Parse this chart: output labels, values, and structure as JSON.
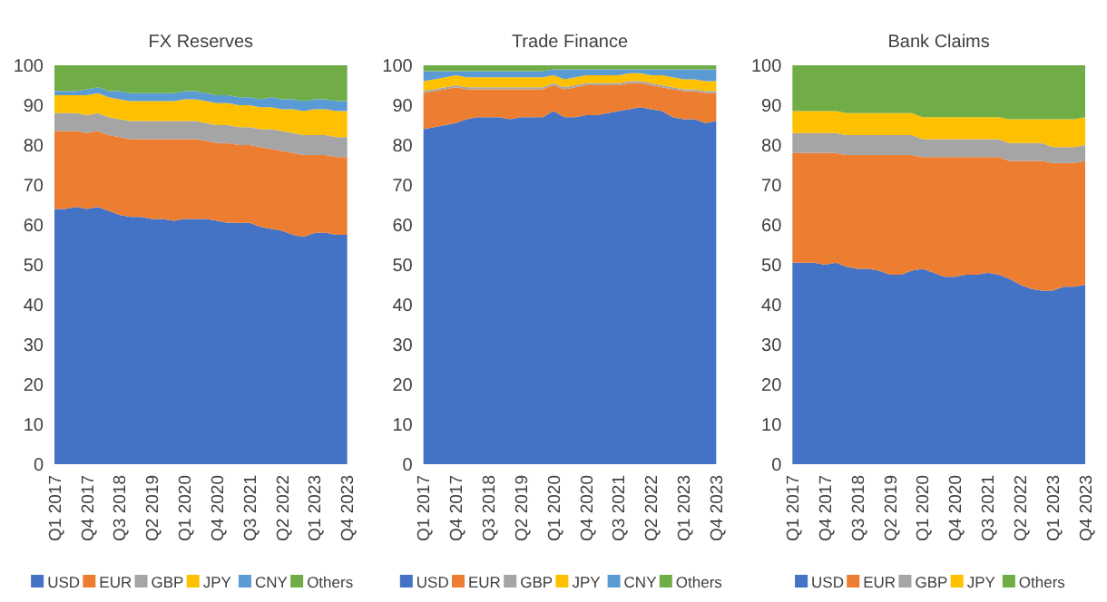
{
  "chart_data": [
    {
      "type": "area",
      "stacked": true,
      "title": "FX Reserves",
      "categories": [
        "Q1 2017",
        null,
        null,
        "Q4 2017",
        null,
        null,
        "Q3 2018",
        null,
        null,
        "Q2 2019",
        null,
        null,
        "Q1 2020",
        null,
        null,
        "Q4 2020",
        null,
        null,
        "Q3 2021",
        null,
        null,
        "Q2 2022",
        null,
        null,
        "Q1 2023",
        null,
        null,
        "Q4 2023"
      ],
      "ylim": [
        0,
        100
      ],
      "yticks": [
        0,
        10,
        20,
        30,
        40,
        50,
        60,
        70,
        80,
        90,
        100
      ],
      "grid": false,
      "legend": "bottom",
      "series": [
        {
          "name": "USD",
          "color": "#4472c4",
          "values": [
            64,
            64,
            64.5,
            64,
            64.5,
            63.5,
            62.5,
            62,
            62,
            61.5,
            61.5,
            61,
            61.5,
            61.5,
            61.5,
            61,
            60.5,
            60.5,
            60.5,
            59.5,
            59,
            58.5,
            57.5,
            57,
            58,
            58,
            57.5,
            57.5
          ]
        },
        {
          "name": "EUR",
          "color": "#ed7d31",
          "values": [
            19.5,
            19.5,
            19,
            19,
            19,
            19,
            19.5,
            19.5,
            19.5,
            20,
            20,
            20.5,
            20,
            20,
            19.5,
            19.5,
            20,
            19.5,
            19.5,
            20,
            20,
            20,
            20.5,
            20.5,
            19.5,
            19.5,
            19.5,
            19.5
          ]
        },
        {
          "name": "GBP",
          "color": "#a5a5a5",
          "values": [
            4.5,
            4.5,
            4.5,
            4.5,
            4.5,
            4.5,
            4.5,
            4.5,
            4.5,
            4.5,
            4.5,
            4.5,
            4.5,
            4.5,
            4.5,
            4.5,
            4.5,
            4.5,
            4.5,
            4.5,
            5,
            5,
            5,
            5,
            5,
            5,
            5,
            5
          ]
        },
        {
          "name": "JPY",
          "color": "#ffc000",
          "values": [
            4.5,
            4.5,
            4.5,
            5,
            5,
            5,
            5,
            5,
            5,
            5,
            5,
            5,
            5.5,
            5.5,
            5.5,
            5.5,
            5.5,
            5.5,
            5.5,
            5.5,
            5.5,
            5.5,
            6,
            6,
            6.5,
            6.5,
            6.5,
            6.5
          ]
        },
        {
          "name": "CNY",
          "color": "#5b9bd5",
          "values": [
            1,
            1,
            1,
            1.5,
            1.5,
            1.5,
            2,
            2,
            2,
            2,
            2,
            2,
            2,
            2,
            2,
            2,
            2,
            2,
            2,
            2,
            2.5,
            2.5,
            2.5,
            2.5,
            2.5,
            2.5,
            2.5,
            2.5
          ]
        },
        {
          "name": "Others",
          "color": "#70ad47",
          "values": [
            6.5,
            6.5,
            6.5,
            6,
            5.5,
            6.5,
            6.5,
            7,
            7,
            7,
            7,
            7,
            6.5,
            6.5,
            7,
            7.5,
            7.5,
            8,
            8,
            8.5,
            8,
            8.5,
            8.5,
            9,
            8.5,
            8.5,
            9,
            9
          ]
        }
      ]
    },
    {
      "type": "area",
      "stacked": true,
      "title": "Trade Finance",
      "categories": [
        "Q1 2017",
        null,
        null,
        "Q4 2017",
        null,
        null,
        "Q3 2018",
        null,
        null,
        "Q2 2019",
        null,
        null,
        "Q1 2020",
        null,
        null,
        "Q4 2020",
        null,
        null,
        "Q3 2021",
        null,
        null,
        "Q2 2022",
        null,
        null,
        "Q1 2023",
        null,
        null,
        "Q4 2023"
      ],
      "ylim": [
        0,
        100
      ],
      "yticks": [
        0,
        10,
        20,
        30,
        40,
        50,
        60,
        70,
        80,
        90,
        100
      ],
      "grid": false,
      "legend": "bottom",
      "series": [
        {
          "name": "USD",
          "color": "#4472c4",
          "values": [
            84,
            84.5,
            85,
            85.5,
            86.5,
            87,
            87,
            87,
            86.5,
            87,
            87,
            87,
            88.5,
            87,
            87,
            87.5,
            87.5,
            88,
            88.5,
            89,
            89.5,
            89,
            88.5,
            87,
            86.5,
            86.5,
            85.5,
            86
          ]
        },
        {
          "name": "EUR",
          "color": "#ed7d31",
          "values": [
            9,
            9,
            9,
            9,
            7.5,
            7,
            7,
            7,
            7.5,
            7,
            7,
            7,
            6.5,
            7,
            7.5,
            7.5,
            7.5,
            7,
            6.5,
            6.5,
            6,
            6,
            6,
            7,
            7,
            7,
            7.5,
            7
          ]
        },
        {
          "name": "GBP",
          "color": "#a5a5a5",
          "values": [
            0.5,
            0.5,
            0.5,
            0.5,
            0.5,
            0.5,
            0.5,
            0.5,
            0.5,
            0.5,
            0.5,
            0.5,
            0.5,
            0.5,
            0.5,
            0.5,
            0.5,
            0.5,
            0.5,
            0.5,
            0.5,
            0.5,
            0.5,
            0.5,
            0.5,
            0.5,
            0.5,
            0.5
          ]
        },
        {
          "name": "JPY",
          "color": "#ffc000",
          "values": [
            2.5,
            2.5,
            2.5,
            2.5,
            2.5,
            2.5,
            2.5,
            2.5,
            2.5,
            2.5,
            2.5,
            2.5,
            2,
            2,
            2,
            2,
            2,
            2,
            2,
            2,
            2,
            2,
            2.5,
            2.5,
            2.5,
            2.5,
            2.5,
            2.5
          ]
        },
        {
          "name": "CNY",
          "color": "#5b9bd5",
          "values": [
            2.5,
            2,
            1.5,
            1,
            1.5,
            1.5,
            1.5,
            1.5,
            1.5,
            1.5,
            1.5,
            1.5,
            1.5,
            2.5,
            2,
            1.5,
            1.5,
            1.5,
            1.5,
            1,
            1,
            1.5,
            1.5,
            2,
            2.5,
            2.5,
            3,
            3
          ]
        },
        {
          "name": "Others",
          "color": "#70ad47",
          "values": [
            1.5,
            1.5,
            1.5,
            1.5,
            1.5,
            1.5,
            1.5,
            1.5,
            1.5,
            1.5,
            1.5,
            1.5,
            1,
            1,
            1,
            1,
            1,
            1,
            1,
            1,
            1,
            1,
            1,
            1,
            1,
            1,
            1,
            1
          ]
        }
      ]
    },
    {
      "type": "area",
      "stacked": true,
      "title": "Bank Claims",
      "categories": [
        "Q1 2017",
        null,
        null,
        "Q4 2017",
        null,
        null,
        "Q3 2018",
        null,
        null,
        "Q2 2019",
        null,
        null,
        "Q1 2020",
        null,
        null,
        "Q4 2020",
        null,
        null,
        "Q3 2021",
        null,
        null,
        "Q2 2022",
        null,
        null,
        "Q1 2023",
        null,
        null,
        "Q4 2023"
      ],
      "ylim": [
        0,
        100
      ],
      "yticks": [
        0,
        10,
        20,
        30,
        40,
        50,
        60,
        70,
        80,
        90,
        100
      ],
      "grid": false,
      "legend": "bottom",
      "series": [
        {
          "name": "USD",
          "color": "#4472c4",
          "values": [
            50.5,
            50.5,
            50.5,
            50,
            50.5,
            49.5,
            49,
            49,
            48.5,
            47.5,
            47.5,
            48.5,
            49,
            48,
            47,
            47,
            47.5,
            47.5,
            48,
            47.5,
            46.5,
            45,
            44,
            43.5,
            43.5,
            44.5,
            44.5,
            45
          ]
        },
        {
          "name": "EUR",
          "color": "#ed7d31",
          "values": [
            27.5,
            27.5,
            27.5,
            28,
            27.5,
            28,
            28.5,
            28.5,
            29,
            30,
            30,
            29,
            28,
            29,
            30,
            30,
            29.5,
            29.5,
            29,
            29.5,
            29.5,
            31,
            32,
            32.5,
            32,
            31,
            31,
            31
          ]
        },
        {
          "name": "GBP",
          "color": "#a5a5a5",
          "values": [
            5,
            5,
            5,
            5,
            5,
            5,
            5,
            5,
            5,
            5,
            5,
            5,
            4.5,
            4.5,
            4.5,
            4.5,
            4.5,
            4.5,
            4.5,
            4.5,
            4.5,
            4.5,
            4.5,
            4.5,
            4,
            4,
            4,
            4
          ]
        },
        {
          "name": "JPY",
          "color": "#ffc000",
          "values": [
            5.5,
            5.5,
            5.5,
            5.5,
            5.5,
            5.5,
            5.5,
            5.5,
            5.5,
            5.5,
            5.5,
            5.5,
            5.5,
            5.5,
            5.5,
            5.5,
            5.5,
            5.5,
            5.5,
            5.5,
            6,
            6,
            6,
            6,
            7,
            7,
            7,
            7
          ]
        },
        {
          "name": "Others",
          "color": "#70ad47",
          "values": [
            11.5,
            11.5,
            11.5,
            11.5,
            11.5,
            12,
            12,
            12,
            12,
            12,
            12,
            12,
            13,
            13,
            13,
            13,
            13,
            13,
            13,
            13,
            13.5,
            13.5,
            13.5,
            13.5,
            13.5,
            13.5,
            13.5,
            13
          ]
        }
      ]
    }
  ]
}
